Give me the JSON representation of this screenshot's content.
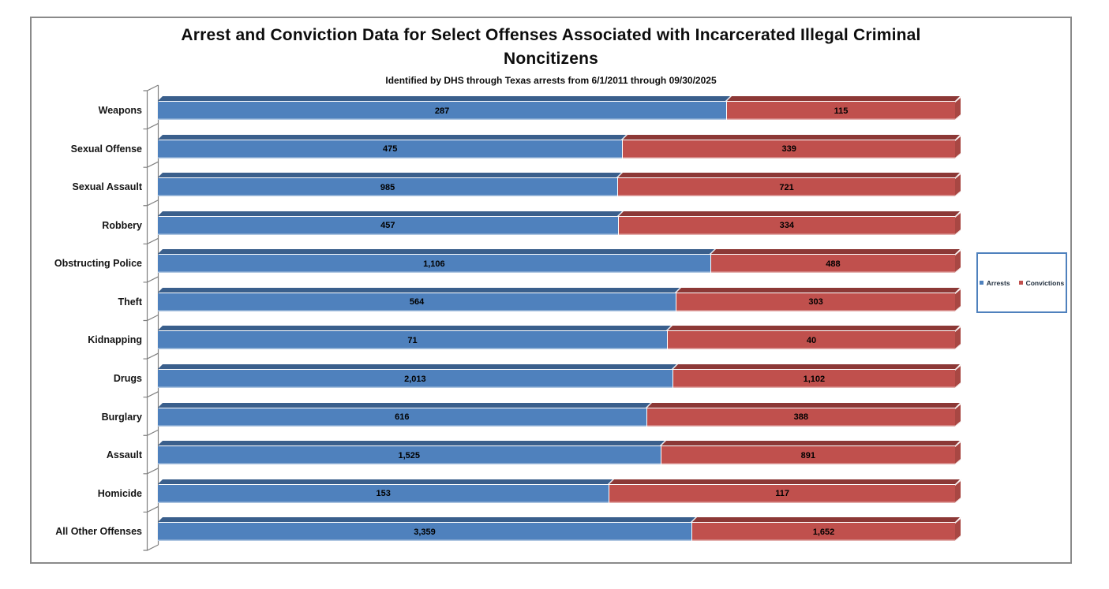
{
  "frame": {
    "border_color": "#8a8a8a",
    "background": "#ffffff"
  },
  "chart_data": {
    "type": "bar",
    "orientation": "horizontal",
    "stacking": "100%",
    "style": "3d",
    "title": "Arrest and Conviction Data for Select Offenses Associated with Incarcerated Illegal Criminal Noncitizens",
    "title_lines": [
      "Arrest and Conviction Data for Select Offenses Associated with Incarcerated Illegal Criminal",
      "Noncitizens"
    ],
    "subtitle": "Identified by DHS through Texas arrests from 6/1/2011 through 09/30/2025",
    "categories": [
      "Weapons",
      "Sexual Offense",
      "Sexual Assault",
      "Robbery",
      "Obstructing Police",
      "Theft",
      "Kidnapping",
      "Drugs",
      "Burglary",
      "Assault",
      "Homicide",
      "All Other Offenses"
    ],
    "series": [
      {
        "name": "Arrests",
        "color": "#4F81BD",
        "dark_color": "#3A5F8C",
        "values": [
          287,
          475,
          985,
          457,
          1106,
          564,
          71,
          2013,
          616,
          1525,
          153,
          3359
        ]
      },
      {
        "name": "Convictions",
        "color": "#C0504D",
        "dark_color": "#8C3836",
        "cap_color": "#A84743",
        "values": [
          115,
          339,
          721,
          334,
          488,
          303,
          40,
          1102,
          388,
          891,
          117,
          1652
        ]
      }
    ],
    "legend": {
      "position": "right-middle",
      "entries": [
        "Arrests",
        "Convictions"
      ],
      "border_color": "#4F81BD"
    },
    "value_labels": true,
    "axis_wall_color": "#7f7f7f"
  }
}
